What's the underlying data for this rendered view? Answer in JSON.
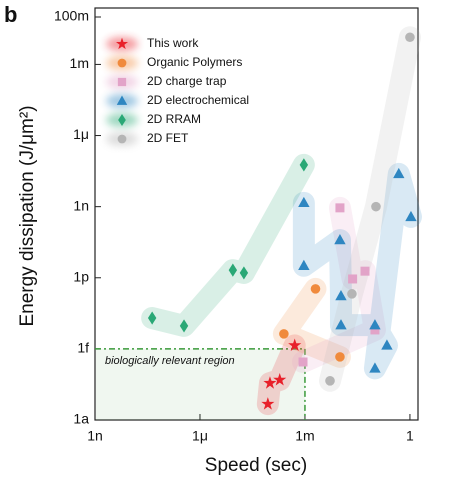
{
  "chart_data": {
    "type": "scatter",
    "panel_label": "b",
    "x_label": "Speed (sec)",
    "y_label": "Energy dissipation (J/μm²)",
    "log_x": true,
    "log_y": true,
    "xlim": [
      1e-09,
      1.7
    ],
    "ylim": [
      1e-18,
      0.24
    ],
    "xticks": [
      {
        "value": 1e-09,
        "label": "1n"
      },
      {
        "value": 1e-06,
        "label": "1μ"
      },
      {
        "value": 0.001,
        "label": "1m"
      },
      {
        "value": 1,
        "label": "1"
      }
    ],
    "yticks": [
      {
        "value": 1e-18,
        "label": "1a"
      },
      {
        "value": 1e-15,
        "label": "1f"
      },
      {
        "value": 1e-12,
        "label": "1p"
      },
      {
        "value": 1e-09,
        "label": "1n"
      },
      {
        "value": 1e-06,
        "label": "1μ"
      },
      {
        "value": 0.001,
        "label": "1m"
      },
      {
        "value": 0.1,
        "label": "100m"
      }
    ],
    "region": {
      "label": "biologically relevant region",
      "x": 0.001,
      "y": 1e-15,
      "color": "#3a9a3a"
    },
    "legend": "top-left",
    "series": [
      {
        "name": "This work",
        "color": "#e8202a",
        "marker": "star",
        "x": [
          0.00051,
          0.00019,
          0.0001,
          8.7e-05
        ],
        "values": [
          1.4e-15,
          4.9e-17,
          3.6e-17,
          4.7e-18
        ]
      },
      {
        "name": "Organic Polymers",
        "color": "#f08a3c",
        "marker": "circle",
        "x": [
          0.002,
          0.00025,
          0.01
        ],
        "values": [
          3.4e-13,
          4.3e-15,
          4.6e-16
        ]
      },
      {
        "name": "2D charge trap",
        "color": "#e2a3c8",
        "marker": "square",
        "x": [
          0.01,
          0.023,
          0.052,
          0.1,
          0.00088
        ],
        "values": [
          8.9e-10,
          8.9e-13,
          1.9e-12,
          6.3e-15,
          2.8e-16
        ]
      },
      {
        "name": "2D electrochemical",
        "color": "#2e86c1",
        "marker": "triangle",
        "x": [
          0.00093,
          0.00093,
          0.01,
          0.0107,
          0.0107,
          0.1,
          0.22,
          0.1,
          0.48,
          1.07
        ],
        "values": [
          1.45e-09,
          3.2e-12,
          3.9e-11,
          1.7e-13,
          1e-14,
          1e-14,
          1.4e-15,
          1.5e-16,
          2.4e-08,
          3.7e-10
        ]
      },
      {
        "name": "2D RRAM",
        "color": "#2aa876",
        "marker": "diamond",
        "x": [
          4.3e-08,
          3.5e-07,
          8.7e-06,
          1.8e-05,
          0.00093
        ],
        "values": [
          2e-14,
          9.3e-15,
          2.1e-12,
          1.6e-12,
          5.8e-08
        ]
      },
      {
        "name": "2D FET",
        "color": "#b5b5b5",
        "marker": "circle",
        "x": [
          0.0052,
          0.022,
          0.107,
          1
        ],
        "values": [
          4.5e-17,
          2.1e-13,
          1e-09,
          0.014
        ]
      }
    ]
  }
}
